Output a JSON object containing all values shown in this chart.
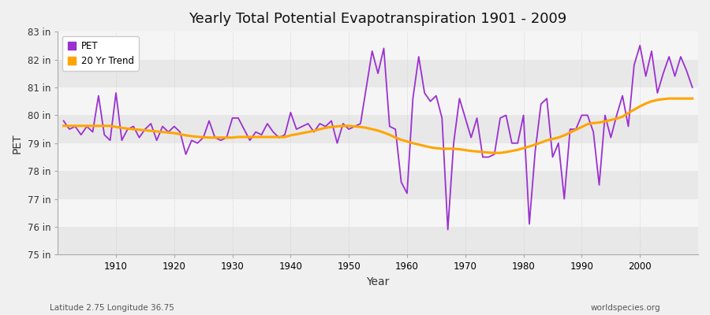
{
  "title": "Yearly Total Potential Evapotranspiration 1901 - 2009",
  "xlabel": "Year",
  "ylabel": "PET",
  "subtitle_left": "Latitude 2.75 Longitude 36.75",
  "subtitle_right": "worldspecies.org",
  "legend_pet": "PET",
  "legend_trend": "20 Yr Trend",
  "pet_color": "#9b30d0",
  "trend_color": "#FFA500",
  "bg_color": "#f0f0f0",
  "band_light": "#f5f5f5",
  "band_dark": "#e8e8e8",
  "grid_color": "#cccccc",
  "ylim": [
    75,
    83
  ],
  "ytick_values": [
    75,
    76,
    77,
    78,
    79,
    80,
    81,
    82,
    83
  ],
  "ytick_labels": [
    "75 in",
    "76 in",
    "77 in",
    "78 in",
    "79 in",
    "80 in",
    "81 in",
    "82 in",
    "83 in"
  ],
  "xtick_values": [
    1910,
    1920,
    1930,
    1940,
    1950,
    1960,
    1970,
    1980,
    1990,
    2000
  ],
  "xlim_min": 1900,
  "xlim_max": 2010,
  "years": [
    1901,
    1902,
    1903,
    1904,
    1905,
    1906,
    1907,
    1908,
    1909,
    1910,
    1911,
    1912,
    1913,
    1914,
    1915,
    1916,
    1917,
    1918,
    1919,
    1920,
    1921,
    1922,
    1923,
    1924,
    1925,
    1926,
    1927,
    1928,
    1929,
    1930,
    1931,
    1932,
    1933,
    1934,
    1935,
    1936,
    1937,
    1938,
    1939,
    1940,
    1941,
    1942,
    1943,
    1944,
    1945,
    1946,
    1947,
    1948,
    1949,
    1950,
    1951,
    1952,
    1953,
    1954,
    1955,
    1956,
    1957,
    1958,
    1959,
    1960,
    1961,
    1962,
    1963,
    1964,
    1965,
    1966,
    1967,
    1968,
    1969,
    1970,
    1971,
    1972,
    1973,
    1974,
    1975,
    1976,
    1977,
    1978,
    1979,
    1980,
    1981,
    1982,
    1983,
    1984,
    1985,
    1986,
    1987,
    1988,
    1989,
    1990,
    1991,
    1992,
    1993,
    1994,
    1995,
    1996,
    1997,
    1998,
    1999,
    2000,
    2001,
    2002,
    2003,
    2004,
    2005,
    2006,
    2007,
    2008,
    2009
  ],
  "pet_values": [
    79.8,
    79.5,
    79.6,
    79.3,
    79.6,
    79.4,
    80.7,
    79.3,
    79.1,
    80.8,
    79.1,
    79.5,
    79.6,
    79.2,
    79.5,
    79.7,
    79.1,
    79.6,
    79.4,
    79.6,
    79.4,
    78.6,
    79.1,
    79.0,
    79.2,
    79.8,
    79.2,
    79.1,
    79.2,
    79.9,
    79.9,
    79.5,
    79.1,
    79.4,
    79.3,
    79.7,
    79.4,
    79.2,
    79.3,
    80.1,
    79.5,
    79.6,
    79.7,
    79.4,
    79.7,
    79.6,
    79.8,
    79.0,
    79.7,
    79.5,
    79.6,
    79.7,
    81.0,
    82.3,
    81.5,
    82.4,
    79.6,
    79.5,
    77.6,
    77.2,
    80.6,
    82.1,
    80.8,
    80.5,
    80.7,
    79.9,
    75.9,
    79.0,
    80.6,
    79.9,
    79.2,
    79.9,
    78.5,
    78.5,
    78.6,
    79.9,
    80.0,
    79.0,
    79.0,
    80.0,
    76.1,
    78.7,
    80.4,
    80.6,
    78.5,
    79.0,
    77.0,
    79.5,
    79.5,
    80.0,
    80.0,
    79.4,
    77.5,
    80.0,
    79.2,
    80.0,
    80.7,
    79.6,
    81.8,
    82.5,
    81.4,
    82.3,
    80.8,
    81.5,
    82.1,
    81.4,
    82.1,
    81.6,
    81.0
  ],
  "trend_values": [
    79.62,
    79.62,
    79.62,
    79.62,
    79.62,
    79.62,
    79.62,
    79.62,
    79.62,
    79.58,
    79.55,
    79.52,
    79.5,
    79.48,
    79.46,
    79.44,
    79.42,
    79.4,
    79.38,
    79.36,
    79.32,
    79.28,
    79.25,
    79.23,
    79.21,
    79.2,
    79.2,
    79.2,
    79.2,
    79.2,
    79.22,
    79.22,
    79.22,
    79.22,
    79.22,
    79.22,
    79.22,
    79.22,
    79.22,
    79.28,
    79.32,
    79.36,
    79.4,
    79.44,
    79.5,
    79.55,
    79.58,
    79.6,
    79.62,
    79.62,
    79.6,
    79.58,
    79.55,
    79.5,
    79.45,
    79.38,
    79.3,
    79.2,
    79.12,
    79.06,
    79.0,
    78.95,
    78.9,
    78.85,
    78.82,
    78.8,
    78.8,
    78.8,
    78.78,
    78.75,
    78.72,
    78.7,
    78.68,
    78.66,
    78.65,
    78.65,
    78.68,
    78.72,
    78.76,
    78.82,
    78.88,
    78.95,
    79.02,
    79.1,
    79.15,
    79.2,
    79.28,
    79.38,
    79.48,
    79.58,
    79.68,
    79.72,
    79.74,
    79.78,
    79.83,
    79.88,
    79.95,
    80.08,
    80.2,
    80.32,
    80.42,
    80.5,
    80.55,
    80.58,
    80.6,
    80.6,
    80.6,
    80.6,
    80.6
  ]
}
